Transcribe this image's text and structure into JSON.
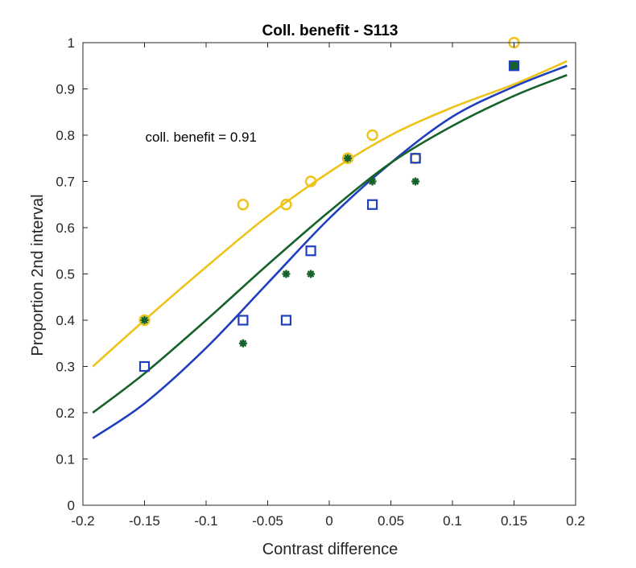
{
  "chart_data": {
    "type": "scatter",
    "title": "Coll. benefit - S113",
    "xlabel": "Contrast difference",
    "ylabel": "Proportion 2nd interval",
    "xlim": [
      -0.2,
      0.2
    ],
    "ylim": [
      0,
      1
    ],
    "xticks": [
      -0.2,
      -0.15,
      -0.1,
      -0.05,
      0,
      0.05,
      0.1,
      0.15,
      0.2
    ],
    "xtick_labels": [
      "-0.2",
      "-0.15",
      "-0.1",
      "-0.05",
      "0",
      "0.05",
      "0.1",
      "0.15",
      "0.2"
    ],
    "yticks": [
      0,
      0.1,
      0.2,
      0.3,
      0.4,
      0.5,
      0.6,
      0.7,
      0.8,
      0.9,
      1
    ],
    "ytick_labels": [
      "0",
      "0.1",
      "0.2",
      "0.3",
      "0.4",
      "0.5",
      "0.6",
      "0.7",
      "0.8",
      "0.9",
      "1"
    ],
    "grid": false,
    "annotation": {
      "text": "coll. benefit = 0.91",
      "x": -0.15,
      "y": 0.79
    },
    "series": [
      {
        "marker": "circle",
        "color": "#edc31a",
        "x": [
          -0.15,
          -0.07,
          -0.035,
          -0.015,
          0.015,
          0.035,
          0.07,
          0.15
        ],
        "y": [
          0.4,
          0.65,
          0.65,
          0.7,
          0.75,
          0.8,
          0.75,
          1.0
        ],
        "fit": {
          "x": [
            -0.192,
            -0.15,
            -0.1,
            -0.05,
            0,
            0.05,
            0.1,
            0.15,
            0.193
          ],
          "y": [
            0.3,
            0.4,
            0.515,
            0.625,
            0.72,
            0.8,
            0.86,
            0.91,
            0.96
          ]
        }
      },
      {
        "marker": "square",
        "color": "#1f3fbf",
        "x": [
          -0.15,
          -0.07,
          -0.035,
          -0.015,
          0.035,
          0.07,
          0.15
        ],
        "y": [
          0.3,
          0.4,
          0.4,
          0.55,
          0.65,
          0.75,
          0.95
        ],
        "fit": {
          "x": [
            -0.192,
            -0.15,
            -0.1,
            -0.05,
            0,
            0.05,
            0.1,
            0.15,
            0.193
          ],
          "y": [
            0.145,
            0.22,
            0.34,
            0.48,
            0.62,
            0.74,
            0.84,
            0.905,
            0.95
          ]
        }
      },
      {
        "marker": "asterisk",
        "color": "#17622a",
        "x": [
          -0.15,
          -0.07,
          -0.035,
          -0.015,
          0.015,
          0.035,
          0.07,
          0.15
        ],
        "y": [
          0.4,
          0.35,
          0.5,
          0.5,
          0.75,
          0.7,
          0.7,
          0.95
        ],
        "fit": {
          "x": [
            -0.192,
            -0.15,
            -0.1,
            -0.05,
            0,
            0.05,
            0.1,
            0.15,
            0.193
          ],
          "y": [
            0.2,
            0.285,
            0.4,
            0.52,
            0.635,
            0.74,
            0.82,
            0.885,
            0.93
          ]
        }
      }
    ]
  }
}
